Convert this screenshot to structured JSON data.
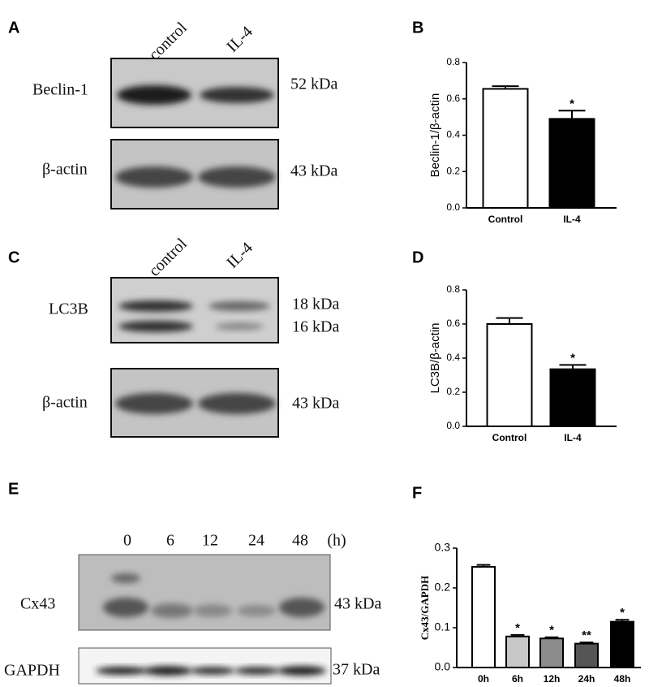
{
  "panel_labels": [
    "A",
    "B",
    "C",
    "D",
    "E",
    "F"
  ],
  "blots": [
    {
      "lanes": [
        "control",
        "IL-4"
      ],
      "rows": [
        {
          "label": "Beclin-1",
          "sizes": [
            "52 kDa"
          ]
        },
        {
          "label": "β-actin",
          "sizes": [
            "43 kDa"
          ]
        }
      ]
    },
    {
      "lanes": [
        "control",
        "IL-4"
      ],
      "rows": [
        {
          "label": "LC3B",
          "sizes": [
            "18 kDa",
            "16 kDa"
          ]
        },
        {
          "label": "β-actin",
          "sizes": [
            "43 kDa"
          ]
        }
      ]
    },
    {
      "lanes": [
        "0",
        "6",
        "12",
        "24",
        "48"
      ],
      "unit": "(h)",
      "rows": [
        {
          "label": "Cx43",
          "sizes": [
            "43 kDa"
          ]
        },
        {
          "label": "GAPDH",
          "sizes": [
            "37 kDa"
          ]
        }
      ]
    }
  ],
  "chart_data": [
    {
      "type": "bar",
      "ylabel": "Beclin-1/β-actin",
      "categories": [
        "Control",
        "IL-4"
      ],
      "values": [
        0.655,
        0.49
      ],
      "errors": [
        0.015,
        0.045
      ],
      "annotations": [
        null,
        "*"
      ],
      "colors": [
        "#ffffff",
        "#000000"
      ],
      "ylim": [
        0,
        0.8
      ],
      "yticks": [
        {
          "value": 0,
          "label": "0.0"
        },
        0.2,
        0.4,
        0.6,
        0.8
      ]
    },
    {
      "type": "bar",
      "ylabel": "LC3B/β-actin",
      "categories": [
        "Control",
        "IL-4"
      ],
      "values": [
        0.6,
        0.335
      ],
      "errors": [
        0.035,
        0.025
      ],
      "annotations": [
        null,
        "*"
      ],
      "colors": [
        "#ffffff",
        "#000000"
      ],
      "ylim": [
        0,
        0.8
      ],
      "yticks": [
        {
          "value": 0,
          "label": "0.0"
        },
        0.2,
        0.4,
        0.6,
        0.8
      ]
    },
    {
      "type": "bar",
      "ylabel": "Cx43/GAPDH",
      "categories": [
        "0h",
        "6h",
        "12h",
        "24h",
        "48h"
      ],
      "values": [
        0.253,
        0.078,
        0.073,
        0.06,
        0.115
      ],
      "errors": [
        0.005,
        0.004,
        0.003,
        0.003,
        0.005
      ],
      "annotations": [
        null,
        "*",
        "*",
        "**",
        "*"
      ],
      "colors": [
        "#ffffff",
        "#c8c8c8",
        "#8c8c8c",
        "#555555",
        "#000000"
      ],
      "ylim": [
        0,
        0.3
      ],
      "yticks": [
        {
          "value": 0,
          "label": "0.0"
        },
        0.1,
        0.2,
        0.3
      ]
    }
  ]
}
